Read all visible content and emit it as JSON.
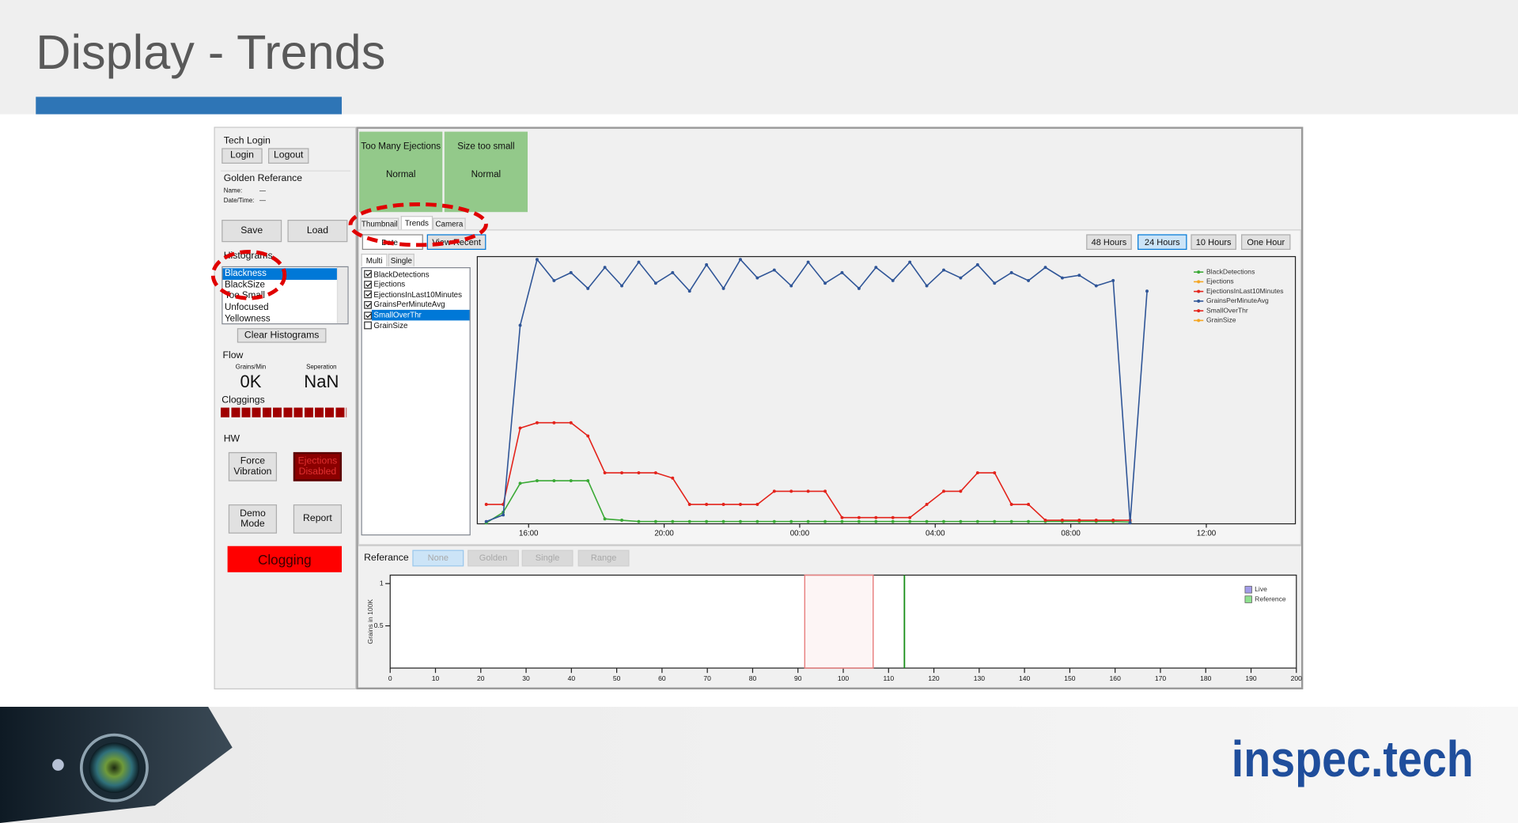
{
  "slide": {
    "title": "Display - Trends",
    "logo": "inspec.tech"
  },
  "left_panel": {
    "tech_login": "Tech Login",
    "login": "Login",
    "logout": "Logout",
    "golden_reference": "Golden Referance",
    "name_label": "Name:",
    "name_value": "—",
    "datetime_label": "Date/Time:",
    "datetime_value": "—",
    "save": "Save",
    "load": "Load",
    "histograms": "Histograms",
    "histogram_list": [
      "Blackness",
      "BlackSize",
      "Too Small",
      "Unfocused",
      "Yellowness"
    ],
    "selected": 0,
    "clear_histograms": "Clear Histograms",
    "flow": "Flow",
    "grains_label": "Grains/Min",
    "grains_value": "0K",
    "separation_label": "Seperation",
    "separation_value": "NaN",
    "cloggings": "Cloggings",
    "hw": "HW",
    "force_vibration": "Force Vibration",
    "ejections_disabled": "Ejections Disabled",
    "demo_mode": "Demo Mode",
    "report": "Report",
    "status": "Clogging"
  },
  "alarms": [
    {
      "name": "Too Many Ejections",
      "state": "Normal"
    },
    {
      "name": "Size too small",
      "state": "Normal"
    }
  ],
  "tabs": [
    "Thumbnail",
    "Trends",
    "Camera"
  ],
  "active_tab": 1,
  "toolbar": {
    "date": "Date",
    "view_recent": "View Recent",
    "ranges": [
      "48 Hours",
      "24 Hours",
      "10 Hours",
      "One Hour"
    ],
    "active_range": 1
  },
  "subtabs": [
    "Multi",
    "Single"
  ],
  "active_subtab": 0,
  "reference": {
    "label": "Referance",
    "options": [
      "None",
      "Golden",
      "Single",
      "Range"
    ],
    "active": 0
  },
  "chart_data": [
    {
      "type": "line",
      "x": [
        14.75,
        15.25,
        15.75,
        16.25,
        16.75,
        17.25,
        17.75,
        18.25,
        18.75,
        19.25,
        19.75,
        20.25,
        20.75,
        21.25,
        21.75,
        22.25,
        22.75,
        23.25,
        23.75,
        24.25,
        24.75,
        25.25,
        25.75,
        26.25,
        26.75,
        27.25,
        27.75,
        28.25,
        28.75,
        29.25,
        29.75,
        30.25,
        30.75,
        31.25,
        31.75,
        32.25,
        32.75,
        33.25,
        33.75,
        34.25
      ],
      "xlim": [
        14.6,
        38.6
      ],
      "xticks": [
        {
          "value": 16,
          "label": "16:00"
        },
        {
          "value": 20,
          "label": "20:00"
        },
        {
          "value": 24,
          "label": "00:00"
        },
        {
          "value": 28,
          "label": "04:00"
        },
        {
          "value": 32,
          "label": "08:00"
        },
        {
          "value": 36,
          "label": "12:00"
        }
      ],
      "legend": "upper right",
      "selected": 4,
      "series": [
        {
          "name": "BlackDetections",
          "color": "#3aa935",
          "checked": true,
          "values": [
            0,
            4,
            15,
            16,
            16,
            16,
            16,
            1.5,
            1,
            0.5,
            0.5,
            0.5,
            0.5,
            0.5,
            0.5,
            0.5,
            0.5,
            0.5,
            0.5,
            0.5,
            0.5,
            0.5,
            0.5,
            0.5,
            0.5,
            0.5,
            0.5,
            0.5,
            0.5,
            0.5,
            0.5,
            0.5,
            0.5,
            0.5,
            0.5,
            0.5,
            0.5,
            0.5,
            0.3,
            null
          ]
        },
        {
          "name": "Ejections",
          "color": "#f5a623",
          "checked": true
        },
        {
          "name": "EjectionsInLast10Minutes",
          "color": "#e3231b",
          "checked": true,
          "values": [
            7,
            7,
            36,
            38,
            38,
            38,
            33,
            19,
            19,
            19,
            19,
            17,
            7,
            7,
            7,
            7,
            7,
            12,
            12,
            12,
            12,
            2,
            2,
            2,
            2,
            2,
            7,
            12,
            12,
            19,
            19,
            7,
            7,
            1,
            1,
            1,
            1,
            1,
            1,
            null
          ]
        },
        {
          "name": "GrainsPerMinuteAvg",
          "color": "#2f5597",
          "checked": true,
          "values": [
            0.5,
            3,
            75,
            100,
            92,
            95,
            89,
            97,
            90,
            99,
            91,
            95,
            88,
            98,
            89,
            100,
            93,
            96,
            90,
            99,
            91,
            95,
            89,
            97,
            92,
            99,
            90,
            96,
            93,
            98,
            91,
            95,
            92,
            97,
            93,
            94,
            90,
            92,
            0,
            88
          ]
        },
        {
          "name": "SmallOverThr",
          "color": "#e3231b",
          "checked": true
        },
        {
          "name": "GrainSize",
          "color": "#f5a623",
          "checked": false
        }
      ]
    },
    {
      "type": "range",
      "y_label": "Grains in 100K",
      "xlim": [
        0,
        200
      ],
      "xticks": [
        0,
        10,
        20,
        30,
        40,
        50,
        60,
        70,
        80,
        90,
        100,
        110,
        120,
        130,
        140,
        150,
        160,
        170,
        180,
        190,
        200
      ],
      "ylim": [
        0,
        1.1
      ],
      "yticks": [
        0.5,
        1
      ],
      "range": [
        91.5,
        106.6
      ],
      "range_color": "#e88080",
      "reference_line": 113.5,
      "reference_color": "#1a8f1a",
      "legend": "upper right",
      "series": [
        {
          "name": "Live",
          "color": "#a29be8"
        },
        {
          "name": "Reference",
          "color": "#8fe08f"
        }
      ]
    }
  ]
}
